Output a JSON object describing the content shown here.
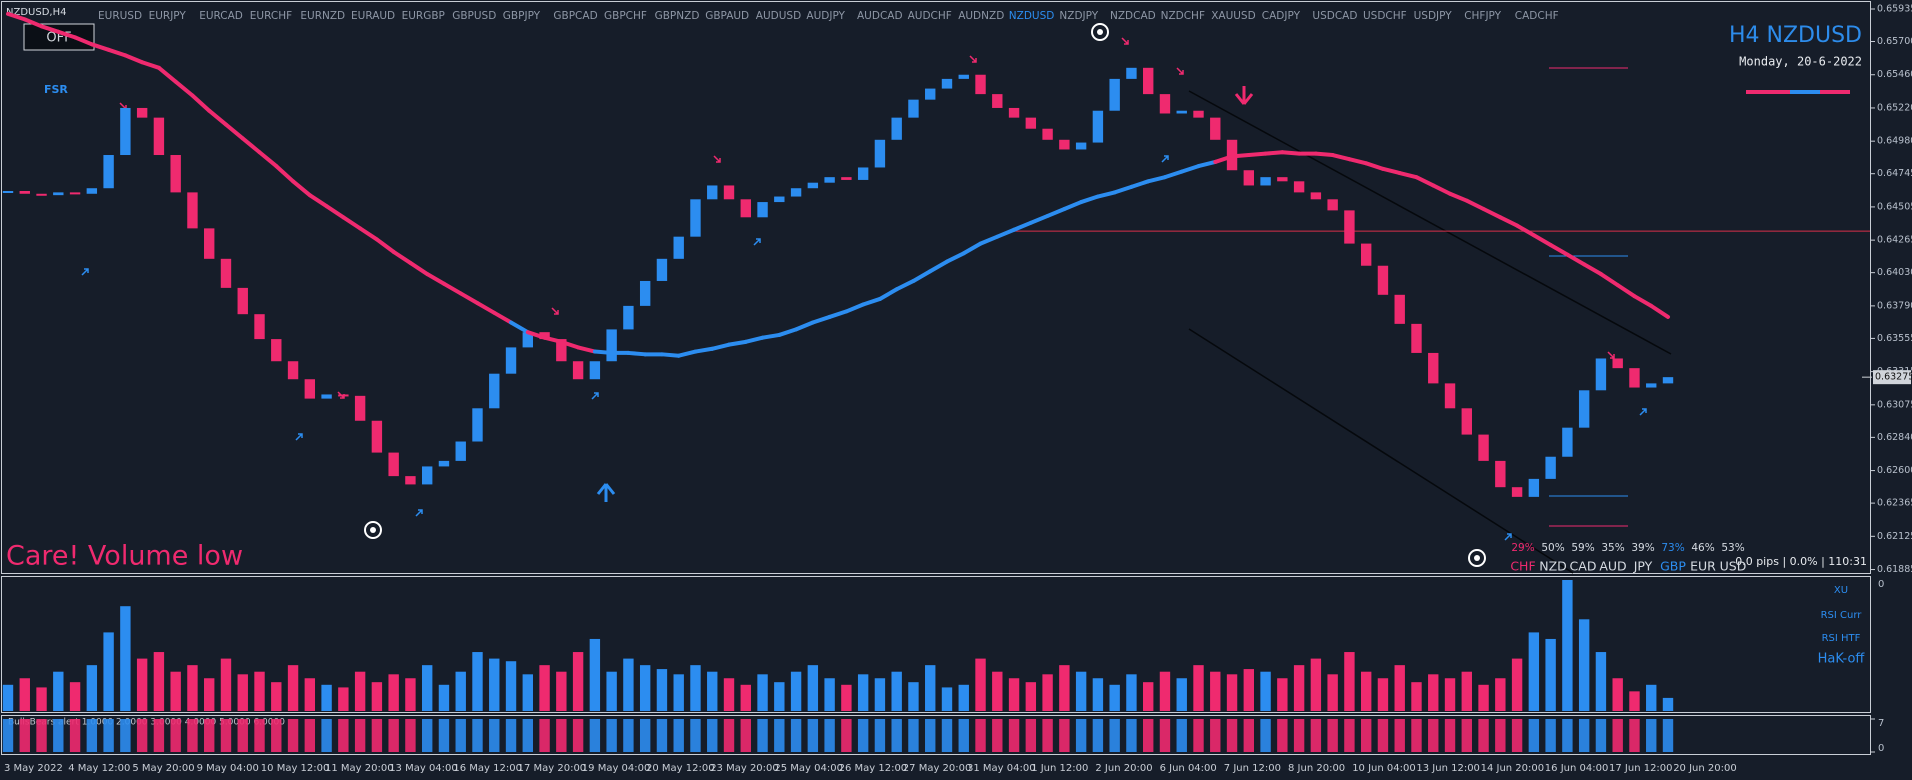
{
  "toolbar": {
    "symbol": "NZDUSD,H4",
    "button": "OFF",
    "active_index": 18,
    "pairs": [
      "EURUSD",
      "EURJPY",
      "EURCAD",
      "EURCHF",
      "EURNZD",
      "EURAUD",
      "EURGBP",
      "GBPUSD",
      "GBPJPY",
      "GBPCAD",
      "GBPCHF",
      "GBPNZD",
      "GBPAUD",
      "AUDUSD",
      "AUDJPY",
      "AUDCAD",
      "AUDCHF",
      "AUDNZD",
      "NZDUSD",
      "NZDJPY",
      "NZDCAD",
      "NZDCHF",
      "XAUUSD",
      "CADJPY",
      "USDCAD",
      "USDCHF",
      "USDJPY",
      "CHFJPY",
      "CADCHF"
    ]
  },
  "chart_data": {
    "type": "candlestick",
    "title": "H4 NZDUSD",
    "subtitle": "Monday, 20-6-2022",
    "indicator_label": "FSR",
    "warning": "Care! Volume low",
    "up_color": "#2c8df0",
    "down_color": "#ef2a6f",
    "close": [
      0.6462,
      0.646,
      0.6459,
      0.6461,
      0.646,
      0.6464,
      0.6488,
      0.6522,
      0.6515,
      0.6488,
      0.6461,
      0.6435,
      0.6413,
      0.6392,
      0.6373,
      0.6355,
      0.6339,
      0.6326,
      0.6312,
      0.6315,
      0.6314,
      0.6296,
      0.6273,
      0.6256,
      0.625,
      0.6263,
      0.6267,
      0.6281,
      0.6305,
      0.633,
      0.6349,
      0.636,
      0.6355,
      0.6339,
      0.6326,
      0.6339,
      0.6362,
      0.6379,
      0.6397,
      0.6413,
      0.6429,
      0.6456,
      0.6466,
      0.6456,
      0.6443,
      0.6454,
      0.6458,
      0.6464,
      0.6468,
      0.6472,
      0.647,
      0.6479,
      0.6499,
      0.6515,
      0.6528,
      0.6536,
      0.6543,
      0.6546,
      0.6532,
      0.6522,
      0.6515,
      0.6507,
      0.6499,
      0.6492,
      0.6497,
      0.652,
      0.6543,
      0.6551,
      0.6532,
      0.6518,
      0.652,
      0.6515,
      0.6499,
      0.6477,
      0.6466,
      0.6472,
      0.6469,
      0.6461,
      0.6456,
      0.6448,
      0.6424,
      0.6408,
      0.6387,
      0.6366,
      0.6345,
      0.6323,
      0.6305,
      0.6286,
      0.6267,
      0.6248,
      0.6241,
      0.6254,
      0.627,
      0.6291,
      0.6318,
      0.6341,
      0.6334,
      0.632,
      0.6323,
      0.63275
    ],
    "ma": [
      0.659,
      0.6586,
      0.6581,
      0.6577,
      0.6573,
      0.6568,
      0.6564,
      0.656,
      0.6555,
      0.6551,
      0.6541,
      0.6531,
      0.652,
      0.651,
      0.65,
      0.649,
      0.648,
      0.6469,
      0.6459,
      0.6451,
      0.6443,
      0.6435,
      0.6427,
      0.6418,
      0.641,
      0.6402,
      0.6395,
      0.6388,
      0.6381,
      0.6374,
      0.6367,
      0.636,
      0.6356,
      0.6353,
      0.6349,
      0.6346,
      0.6345,
      0.6345,
      0.6344,
      0.6344,
      0.6343,
      0.6346,
      0.6348,
      0.6351,
      0.6353,
      0.6356,
      0.6358,
      0.6362,
      0.6367,
      0.6371,
      0.6375,
      0.638,
      0.6384,
      0.6391,
      0.6397,
      0.6404,
      0.6411,
      0.6417,
      0.6424,
      0.6429,
      0.6434,
      0.6439,
      0.6444,
      0.6449,
      0.6454,
      0.6458,
      0.6461,
      0.6465,
      0.6469,
      0.6472,
      0.6476,
      0.648,
      0.6483,
      0.6487,
      0.6488,
      0.6489,
      0.649,
      0.6489,
      0.6489,
      0.6488,
      0.6485,
      0.6482,
      0.6478,
      0.6475,
      0.6472,
      0.6466,
      0.646,
      0.6455,
      0.6449,
      0.6443,
      0.6437,
      0.643,
      0.6423,
      0.6416,
      0.6409,
      0.6402,
      0.6394,
      0.6386,
      0.6379,
      0.6371
    ],
    "ylim": [
      0.6186,
      0.66
    ],
    "yticks": [
      0.65935,
      {
        "value": 0.657,
        "label": "0.65700"
      },
      {
        "value": 0.6546,
        "label": "0.65460"
      },
      {
        "value": 0.6522,
        "label": "0.65220"
      },
      {
        "value": 0.6498,
        "label": "0.64980"
      },
      0.64745,
      0.64505,
      0.64265,
      {
        "value": 0.6403,
        "label": "0.64030"
      },
      {
        "value": 0.6379,
        "label": "0.63790"
      },
      0.63555,
      0.63315,
      0.63075,
      {
        "value": 0.6284,
        "label": "0.62840"
      },
      {
        "value": 0.626,
        "label": "0.62600"
      },
      0.62365,
      0.62125,
      0.61885
    ],
    "current_price": 0.63275,
    "level": 0.6433,
    "level_color": "#d8304a",
    "x_labels": [
      "3 May 2022",
      "4 May 12:00",
      "5 May 20:00",
      "9 May 04:00",
      "10 May 12:00",
      "11 May 20:00",
      "13 May 04:00",
      "16 May 12:00",
      "17 May 20:00",
      "19 May 04:00",
      "20 May 12:00",
      "23 May 20:00",
      "25 May 04:00",
      "26 May 12:00",
      "27 May 20:00",
      "31 May 04:00",
      "1 Jun 12:00",
      "2 Jun 20:00",
      "6 Jun 04:00",
      "7 Jun 12:00",
      "8 Jun 20:00",
      "10 Jun 04:00",
      "13 Jun 12:00",
      "14 Jun 20:00",
      "16 Jun 04:00",
      "17 Jun 12:00",
      "20 Jun 20:00"
    ],
    "volume": {
      "ylim": [
        0,
        100
      ],
      "label": "0",
      "indicator_labels": [
        "XU",
        "RSI Curr",
        "RSI HTF",
        "HaK-off"
      ],
      "values": [
        20,
        25,
        18,
        30,
        22,
        35,
        60,
        80,
        40,
        45,
        30,
        35,
        25,
        40,
        28,
        30,
        22,
        35,
        25,
        20,
        18,
        30,
        22,
        28,
        25,
        35,
        20,
        30,
        45,
        40,
        38,
        28,
        35,
        30,
        45,
        55,
        30,
        40,
        35,
        32,
        28,
        35,
        30,
        25,
        20,
        28,
        22,
        30,
        35,
        25,
        20,
        28,
        25,
        30,
        22,
        35,
        18,
        20,
        40,
        30,
        25,
        22,
        28,
        35,
        30,
        25,
        20,
        28,
        22,
        30,
        25,
        35,
        30,
        28,
        32,
        30,
        25,
        35,
        40,
        28,
        45,
        30,
        25,
        35,
        22,
        28,
        25,
        30,
        20,
        25,
        40,
        60,
        55,
        100,
        70,
        45,
        25,
        15,
        20,
        10
      ]
    },
    "strength_panel": {
      "title": "BullsBears alert 1.0000 2.0000 3.0000 4.0000 5.0000 6.0000",
      "ylim": [
        0,
        7
      ],
      "yticks": [
        0,
        7
      ]
    },
    "currency_strength": {
      "percents": [
        "29%",
        "50%",
        "59%",
        "35%",
        "39%",
        "73%",
        "46%",
        "53%"
      ],
      "currencies": [
        "CHF",
        "NZD",
        "CAD",
        "AUD",
        "JPY",
        "GBP",
        "EUR",
        "USD"
      ],
      "colors": [
        "#ef2a6f",
        "#d6dbe2",
        "#d6dbe2",
        "#d6dbe2",
        "#d6dbe2",
        "#2c8df0",
        "#d6dbe2",
        "#d6dbe2"
      ]
    },
    "status": "0.0 pips | 0.0% | 110:31"
  }
}
